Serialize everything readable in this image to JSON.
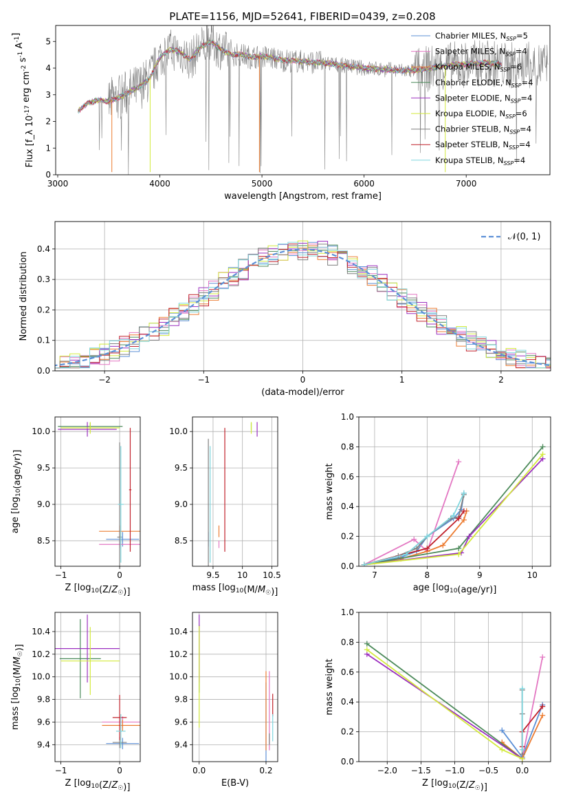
{
  "figure_title": "PLATE=1156, MJD=52641, FIBERID=0439, z=0.208",
  "colors": {
    "Chabrier MILES": "#5b8fd6",
    "Salpeter MILES": "#e377c2",
    "Kroupa MILES": "#ec7b30",
    "Chabrier ELODIE": "#4c8a5a",
    "Salpeter ELODIE": "#9b2fbf",
    "Kroupa ELODIE": "#d3ea3a",
    "Chabrier STELIB": "#7f7f7f",
    "Salpeter STELIB": "#c0202a",
    "Kroupa STELIB": "#7fd6de",
    "normal_curve": "#5b8fd6"
  },
  "chart_data": [
    {
      "id": "spectrum",
      "type": "line",
      "xlabel": "wavelength [Angstrom, rest frame]",
      "ylabel": "Flux [f_λ 10^-17 erg cm^-2 s^-1 A^-1]",
      "xlim": [
        2980,
        7820
      ],
      "ylim": [
        0,
        5.6
      ],
      "xticks": [
        3000,
        4000,
        5000,
        6000,
        7000
      ],
      "yticks": [
        0,
        1,
        2,
        3,
        4,
        5
      ],
      "grid": false,
      "legend_position": "top-right",
      "series": [
        {
          "name": "Chabrier MILES",
          "nssp": "5"
        },
        {
          "name": "Salpeter MILES",
          "nssp": "4"
        },
        {
          "name": "Kroupa MILES",
          "nssp": "6"
        },
        {
          "name": "Chabrier ELODIE",
          "nssp": "4"
        },
        {
          "name": "Salpeter ELODIE",
          "nssp": "4"
        },
        {
          "name": "Kroupa ELODIE",
          "nssp": "6"
        },
        {
          "name": "Chabrier STELIB",
          "nssp": "4"
        },
        {
          "name": "Salpeter STELIB",
          "nssp": "4"
        },
        {
          "name": "Kroupa STELIB",
          "nssp": "4"
        }
      ],
      "data_continuum": {
        "x": [
          3200,
          3300,
          3400,
          3500,
          3600,
          3700,
          3800,
          3900,
          4000,
          4100,
          4200,
          4300,
          4400,
          4500,
          4600,
          4700,
          4800,
          4900,
          5000,
          5200,
          5400,
          5600,
          5800,
          6000,
          6200,
          6400,
          6600,
          6800,
          7000,
          7200,
          7400
        ],
        "y": [
          2.4,
          2.7,
          2.8,
          2.75,
          2.9,
          3.1,
          3.3,
          3.6,
          4.4,
          4.7,
          4.6,
          4.3,
          4.8,
          5.0,
          4.7,
          4.5,
          4.5,
          4.4,
          4.45,
          4.3,
          4.25,
          4.2,
          4.1,
          4.0,
          3.95,
          3.9,
          3.95,
          4.1,
          4.15,
          4.2,
          4.1
        ]
      },
      "observed_noise_end": 7800
    },
    {
      "id": "residual_histogram",
      "type": "bar",
      "xlabel": "(data-model)/error",
      "ylabel": "Normed distribution",
      "xlim": [
        -2.5,
        2.5
      ],
      "ylim": [
        0,
        0.49
      ],
      "xticks": [
        -2,
        -1,
        0,
        1,
        2
      ],
      "yticks": [
        0.0,
        0.1,
        0.2,
        0.3,
        0.4
      ],
      "grid": true,
      "legend_position": "top-right",
      "legend_label": "𝒩(0, 1)",
      "bin_width": 0.1,
      "reference_curve": "normal distribution, mean 0, sigma 1"
    },
    {
      "id": "age_vs_Z",
      "type": "scatter",
      "xlabel": "Z [log10(Z/Z☉)]",
      "ylabel": "age  [log10(age/yr)]",
      "xlim": [
        -1.1,
        0.35
      ],
      "ylim": [
        8.15,
        10.2
      ],
      "xticks": [
        -1,
        0
      ],
      "yticks": [
        8.5,
        9.0,
        9.5,
        10.0
      ],
      "grid": true,
      "points": [
        {
          "series": "Chabrier MILES",
          "x": 0.05,
          "y": 8.52,
          "xerr": 0.28,
          "yerr": 0.1
        },
        {
          "series": "Salpeter MILES",
          "x": 0.0,
          "y": 8.45,
          "xerr": 0.35,
          "yerr": 0.05
        },
        {
          "series": "Kroupa MILES",
          "x": 0.0,
          "y": 8.63,
          "xerr": 0.35,
          "yerr": 0.08
        },
        {
          "series": "Chabrier ELODIE",
          "x": -0.5,
          "y": 10.07,
          "xerr": 0.55,
          "yerr": 0.05
        },
        {
          "series": "Salpeter ELODIE",
          "x": -0.55,
          "y": 10.03,
          "xerr": 0.5,
          "yerr": 0.1
        },
        {
          "series": "Kroupa ELODIE",
          "x": -0.5,
          "y": 10.05,
          "xerr": 0.5,
          "yerr": 0.08
        },
        {
          "series": "Chabrier STELIB",
          "x": 0.0,
          "y": 8.55,
          "xerr": 0.04,
          "yerr": 1.3
        },
        {
          "series": "Salpeter STELIB",
          "x": 0.18,
          "y": 9.2,
          "xerr": 0.02,
          "yerr": 0.85
        },
        {
          "series": "Kroupa STELIB",
          "x": 0.02,
          "y": 9.0,
          "xerr": 0.05,
          "yerr": 0.8
        }
      ]
    },
    {
      "id": "age_vs_mass",
      "type": "scatter",
      "xlabel": "mass [log10(M/M☉)]",
      "ylabel": "",
      "xlim": [
        9.15,
        10.6
      ],
      "ylim": [
        8.15,
        10.2
      ],
      "xticks": [
        9.5,
        10.0,
        10.5
      ],
      "yticks": [
        8.5,
        9.0,
        9.5,
        10.0
      ],
      "grid": true,
      "points": [
        {
          "series": "Chabrier MILES",
          "x": 9.42,
          "y": 8.52,
          "xerr": 0.0,
          "yerr": 0.1
        },
        {
          "series": "Salpeter MILES",
          "x": 9.6,
          "y": 8.45,
          "xerr": 0.0,
          "yerr": 0.05
        },
        {
          "series": "Kroupa MILES",
          "x": 9.6,
          "y": 8.63,
          "xerr": 0.0,
          "yerr": 0.08
        },
        {
          "series": "Chabrier ELODIE",
          "x": 10.15,
          "y": 10.07,
          "xerr": 0.0,
          "yerr": 0.05
        },
        {
          "series": "Salpeter ELODIE",
          "x": 10.25,
          "y": 10.03,
          "xerr": 0.0,
          "yerr": 0.1
        },
        {
          "series": "Kroupa ELODIE",
          "x": 10.15,
          "y": 10.05,
          "xerr": 0.0,
          "yerr": 0.08
        },
        {
          "series": "Chabrier STELIB",
          "x": 9.42,
          "y": 8.6,
          "xerr": 0.0,
          "yerr": 1.3
        },
        {
          "series": "Salpeter STELIB",
          "x": 9.7,
          "y": 9.2,
          "xerr": 0.0,
          "yerr": 0.85
        },
        {
          "series": "Kroupa STELIB",
          "x": 9.45,
          "y": 9.0,
          "xerr": 0.0,
          "yerr": 0.8
        }
      ]
    },
    {
      "id": "mass_weight_vs_age",
      "type": "line",
      "xlabel": "age  [log10(age/yr)]",
      "ylabel": "mass weight",
      "xlim": [
        6.7,
        10.35
      ],
      "ylim": [
        0,
        1.0
      ],
      "xticks": [
        7,
        8,
        9,
        10
      ],
      "yticks": [
        0.0,
        0.2,
        0.4,
        0.6,
        0.8,
        1.0
      ],
      "grid": true,
      "series": [
        {
          "name": "Chabrier MILES",
          "x": [
            6.8,
            7.5,
            7.8,
            8.0,
            8.5,
            8.65,
            8.7
          ],
          "y": [
            0.01,
            0.06,
            0.1,
            0.2,
            0.32,
            0.38,
            0.49
          ]
        },
        {
          "name": "Salpeter MILES",
          "x": [
            6.8,
            7.75,
            8.0,
            8.6
          ],
          "y": [
            0.01,
            0.18,
            0.1,
            0.7
          ]
        },
        {
          "name": "Kroupa MILES",
          "x": [
            6.8,
            7.5,
            8.0,
            8.3,
            8.7,
            8.75
          ],
          "y": [
            0.01,
            0.05,
            0.1,
            0.14,
            0.31,
            0.37
          ]
        },
        {
          "name": "Chabrier ELODIE",
          "x": [
            6.8,
            8.6,
            10.2
          ],
          "y": [
            0.01,
            0.12,
            0.8
          ]
        },
        {
          "name": "Salpeter ELODIE",
          "x": [
            6.8,
            8.65,
            8.8,
            10.2
          ],
          "y": [
            0.01,
            0.09,
            0.2,
            0.72
          ]
        },
        {
          "name": "Kroupa ELODIE",
          "x": [
            6.8,
            8.6,
            10.2
          ],
          "y": [
            0.01,
            0.08,
            0.75
          ]
        },
        {
          "name": "Chabrier STELIB",
          "x": [
            6.8,
            7.45,
            7.8,
            8.0,
            8.45,
            8.6,
            8.7
          ],
          "y": [
            0.01,
            0.07,
            0.12,
            0.2,
            0.32,
            0.33,
            0.48
          ]
        },
        {
          "name": "Salpeter STELIB",
          "x": [
            6.8,
            8.0,
            8.6,
            8.7
          ],
          "y": [
            0.01,
            0.12,
            0.32,
            0.37
          ]
        },
        {
          "name": "Kroupa STELIB",
          "x": [
            6.8,
            7.6,
            8.0,
            8.5,
            8.7
          ],
          "y": [
            0.01,
            0.08,
            0.2,
            0.34,
            0.49
          ]
        }
      ]
    },
    {
      "id": "mass_vs_Z",
      "type": "scatter",
      "xlabel": "Z [log10(Z/Z☉)]",
      "ylabel": "mass [log10(M/M☉)]",
      "xlim": [
        -1.1,
        0.35
      ],
      "ylim": [
        9.25,
        10.57
      ],
      "xticks": [
        -1,
        0
      ],
      "yticks": [
        9.4,
        9.6,
        9.8,
        10.0,
        10.2,
        10.4
      ],
      "grid": true,
      "points": [
        {
          "series": "Chabrier MILES",
          "x": 0.05,
          "y": 9.41,
          "xerr": 0.28,
          "yerr": 0.05
        },
        {
          "series": "Salpeter MILES",
          "x": 0.05,
          "y": 9.6,
          "xerr": 0.35,
          "yerr": 0.05
        },
        {
          "series": "Kroupa MILES",
          "x": 0.05,
          "y": 9.57,
          "xerr": 0.35,
          "yerr": 0.05
        },
        {
          "series": "Chabrier ELODIE",
          "x": -0.67,
          "y": 10.16,
          "xerr": 0.35,
          "yerr": 0.35
        },
        {
          "series": "Salpeter ELODIE",
          "x": -0.55,
          "y": 10.25,
          "xerr": 0.55,
          "yerr": 0.3
        },
        {
          "series": "Kroupa ELODIE",
          "x": -0.5,
          "y": 10.14,
          "xerr": 0.5,
          "yerr": 0.3
        },
        {
          "series": "Chabrier STELIB",
          "x": 0.0,
          "y": 9.42,
          "xerr": 0.12,
          "yerr": 0.05
        },
        {
          "series": "Salpeter STELIB",
          "x": 0.0,
          "y": 9.64,
          "xerr": 0.12,
          "yerr": 0.2
        },
        {
          "series": "Kroupa STELIB",
          "x": 0.02,
          "y": 9.52,
          "xerr": 0.08,
          "yerr": 0.15
        }
      ]
    },
    {
      "id": "mass_vs_EBV",
      "type": "scatter",
      "xlabel": "E(B-V)",
      "ylabel": "",
      "xlim": [
        -0.02,
        0.235
      ],
      "ylim": [
        9.25,
        10.57
      ],
      "xticks": [
        0.0,
        0.2
      ],
      "yticks": [
        9.4,
        9.6,
        9.8,
        10.0,
        10.2,
        10.4
      ],
      "grid": true,
      "points": [
        {
          "series": "Chabrier MILES",
          "x": 0.2,
          "y": 9.6,
          "xerr": 0.0,
          "yerr": 0.35
        },
        {
          "series": "Salpeter MILES",
          "x": 0.21,
          "y": 9.7,
          "xerr": 0.0,
          "yerr": 0.35
        },
        {
          "series": "Kroupa MILES",
          "x": 0.2,
          "y": 9.7,
          "xerr": 0.0,
          "yerr": 0.35
        },
        {
          "series": "Chabrier ELODIE",
          "x": 0.0,
          "y": 10.16,
          "xerr": 0.0,
          "yerr": 0.3
        },
        {
          "series": "Salpeter ELODIE",
          "x": 0.0,
          "y": 10.25,
          "xerr": 0.0,
          "yerr": 0.3
        },
        {
          "series": "Kroupa ELODIE",
          "x": 0.0,
          "y": 10.0,
          "xerr": 0.0,
          "yerr": 0.45
        },
        {
          "series": "Chabrier STELIB",
          "x": 0.21,
          "y": 9.45,
          "xerr": 0.0,
          "yerr": 0.05
        },
        {
          "series": "Salpeter STELIB",
          "x": 0.22,
          "y": 9.75,
          "xerr": 0.0,
          "yerr": 0.1
        },
        {
          "series": "Kroupa STELIB",
          "x": 0.22,
          "y": 9.55,
          "xerr": 0.0,
          "yerr": 0.12
        }
      ]
    },
    {
      "id": "mass_weight_vs_Z",
      "type": "line",
      "xlabel": "Z [log10(Z/Z☉)]",
      "ylabel": "mass weight",
      "xlim": [
        -2.42,
        0.42
      ],
      "ylim": [
        0,
        1.0
      ],
      "xticks": [
        -2.0,
        -1.5,
        -1.0,
        -0.5,
        0.0
      ],
      "yticks": [
        0.0,
        0.2,
        0.4,
        0.6,
        0.8,
        1.0
      ],
      "grid": true,
      "series": [
        {
          "name": "Chabrier MILES",
          "x": [
            -0.3,
            0.0,
            0.3
          ],
          "y": [
            0.21,
            0.03,
            0.38
          ]
        },
        {
          "name": "Salpeter MILES",
          "x": [
            0.0,
            0.3
          ],
          "y": [
            0.02,
            0.7
          ]
        },
        {
          "name": "Kroupa MILES",
          "x": [
            -0.3,
            0.0,
            0.3
          ],
          "y": [
            0.13,
            0.02,
            0.31
          ]
        },
        {
          "name": "Chabrier ELODIE",
          "x": [
            -2.3,
            0.0
          ],
          "y": [
            0.79,
            0.02
          ]
        },
        {
          "name": "Salpeter ELODIE",
          "x": [
            -2.3,
            0.0
          ],
          "y": [
            0.72,
            0.02
          ]
        },
        {
          "name": "Kroupa ELODIE",
          "x": [
            -2.3,
            -0.3,
            0.0
          ],
          "y": [
            0.75,
            0.08,
            0.02
          ]
        },
        {
          "name": "Chabrier STELIB",
          "x": [
            0.0,
            0.0,
            0.0
          ],
          "y": [
            0.05,
            0.32,
            0.48
          ]
        },
        {
          "name": "Salpeter STELIB",
          "x": [
            0.0,
            0.0,
            0.3
          ],
          "y": [
            0.1,
            0.2,
            0.37
          ]
        },
        {
          "name": "Kroupa STELIB",
          "x": [
            0.0,
            0.0
          ],
          "y": [
            0.08,
            0.49
          ]
        }
      ]
    }
  ]
}
